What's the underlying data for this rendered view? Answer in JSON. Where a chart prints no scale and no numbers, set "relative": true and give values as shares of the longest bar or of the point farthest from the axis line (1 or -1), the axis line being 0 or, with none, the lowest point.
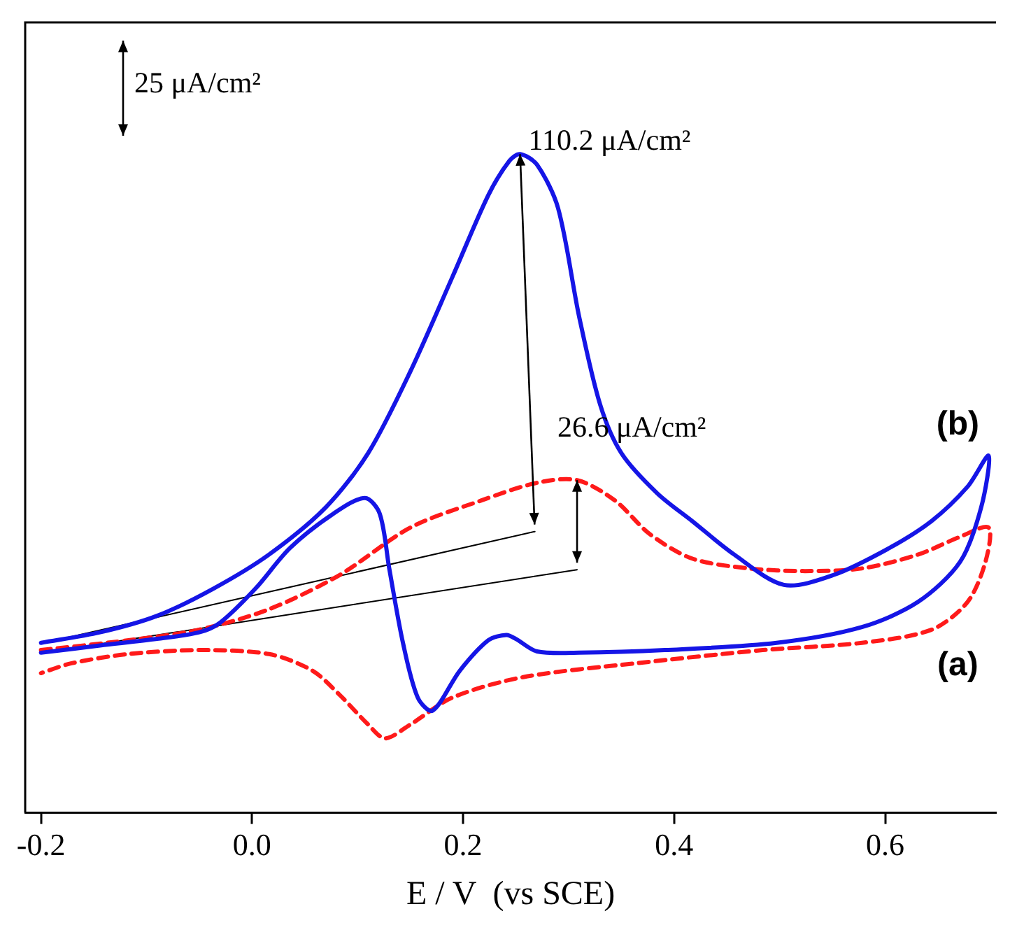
{
  "chart_data": {
    "type": "line",
    "relative": true,
    "xlabel": "E / V  (vs SCE)",
    "xlim": [
      -0.215,
      0.705
    ],
    "xticks": [
      -0.2,
      {
        "value": 0,
        "label": "0.0"
      },
      0.2,
      0.4,
      0.6
    ],
    "grid": false,
    "legend": false,
    "marker": "none",
    "series": [
      {
        "name": "(b)",
        "color": "#1515e6",
        "line_style": "solid",
        "x": [
          -0.2,
          -0.144,
          -0.09,
          -0.037,
          0.016,
          0.07,
          0.11,
          0.15,
          0.19,
          0.224,
          0.244,
          0.254,
          0.27,
          0.29,
          0.31,
          0.33,
          0.35,
          0.384,
          0.417,
          0.457,
          0.504,
          0.551,
          0.604,
          0.644,
          0.678,
          0.698,
          0.691,
          0.671,
          0.631,
          0.578,
          0.497,
          0.391,
          0.31,
          0.27,
          0.25,
          0.241,
          0.224,
          0.197,
          0.171,
          0.157,
          0.143,
          0.13,
          0.121,
          0.107,
          0.077,
          0.036,
          0.003,
          -0.03,
          -0.05,
          -0.09,
          -0.144,
          -0.2
        ],
        "values": [
          0.258,
          0.274,
          0.299,
          0.34,
          0.392,
          0.464,
          0.546,
          0.67,
          0.814,
          0.938,
          0.99,
          1.0,
          0.984,
          0.918,
          0.753,
          0.619,
          0.546,
          0.485,
          0.443,
          0.392,
          0.346,
          0.361,
          0.402,
          0.443,
          0.495,
          0.542,
          0.464,
          0.381,
          0.32,
          0.282,
          0.258,
          0.247,
          0.243,
          0.245,
          0.264,
          0.27,
          0.262,
          0.216,
          0.155,
          0.175,
          0.258,
          0.371,
          0.454,
          0.478,
          0.454,
          0.402,
          0.34,
          0.289,
          0.274,
          0.264,
          0.254,
          0.243
        ]
      },
      {
        "name": "(a)",
        "color": "#ff1a1a",
        "line_style": "dashed",
        "x": [
          -0.2,
          -0.117,
          -0.05,
          0.016,
          0.083,
          0.15,
          0.217,
          0.27,
          0.308,
          0.344,
          0.377,
          0.417,
          0.471,
          0.524,
          0.578,
          0.631,
          0.671,
          0.698,
          0.695,
          0.678,
          0.644,
          0.578,
          0.484,
          0.364,
          0.257,
          0.19,
          0.15,
          0.126,
          0.11,
          0.083,
          0.057,
          0.016,
          -0.05,
          -0.117,
          -0.171,
          -0.2
        ],
        "values": [
          0.247,
          0.262,
          0.278,
          0.309,
          0.361,
          0.433,
          0.474,
          0.501,
          0.505,
          0.474,
          0.423,
          0.386,
          0.371,
          0.367,
          0.371,
          0.392,
          0.419,
          0.433,
          0.381,
          0.32,
          0.278,
          0.258,
          0.247,
          0.227,
          0.206,
          0.175,
          0.134,
          0.113,
          0.134,
          0.179,
          0.216,
          0.241,
          0.247,
          0.241,
          0.227,
          0.212
        ]
      },
      {
        "color": "#000000",
        "line_style": "solid",
        "x": [
          -0.197,
          0.268
        ],
        "values": [
          0.258,
          0.427
        ]
      },
      {
        "color": "#000000",
        "line_style": "solid",
        "x": [
          -0.197,
          0.308
        ],
        "values": [
          0.243,
          0.369
        ]
      }
    ],
    "annotations": [
      "25 μA/cm²",
      {
        "text": "110.2 μA/cm²",
        "x": 0.254,
        "y": 1.0
      },
      {
        "text": "26.6 μA/cm²",
        "x": 0.308,
        "y": 0.505
      }
    ]
  }
}
